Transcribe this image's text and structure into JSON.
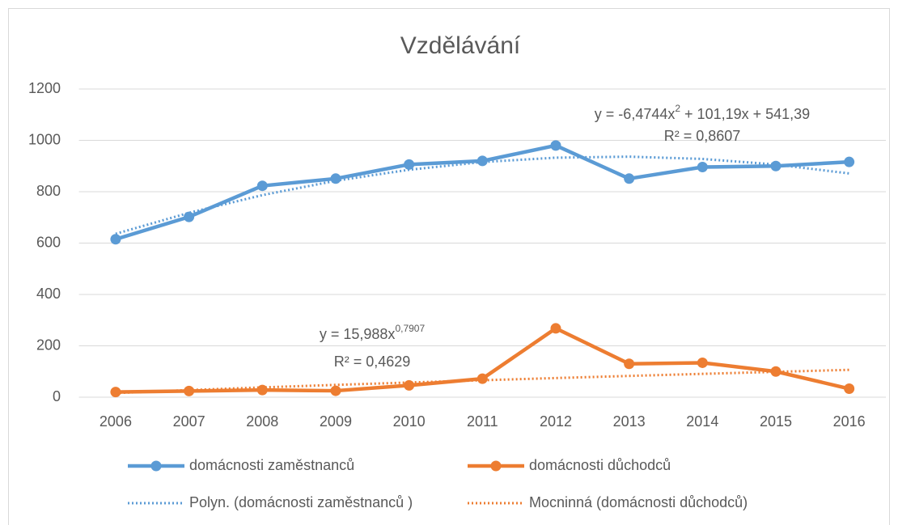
{
  "chart_data": {
    "type": "line",
    "title": "Vzdělávání",
    "categories": [
      "2006",
      "2007",
      "2008",
      "2009",
      "2010",
      "2011",
      "2012",
      "2013",
      "2014",
      "2015",
      "2016"
    ],
    "series": [
      {
        "name": "domácnosti zaměstnanců",
        "color": "#5b9bd5",
        "values": [
          615,
          702,
          823,
          851,
          906,
          920,
          980,
          851,
          896,
          900,
          916
        ]
      },
      {
        "name": "domácnosti důchodců",
        "color": "#ed7d31",
        "values": [
          20,
          24,
          28,
          25,
          46,
          72,
          268,
          130,
          134,
          100,
          33
        ]
      }
    ],
    "trendlines": [
      {
        "name": "Polyn. (domácnosti zaměstnanců )",
        "color": "#5b9bd5",
        "values": [
          636.1,
          717.9,
          786.7,
          842.6,
          885.5,
          915.5,
          932.5,
          936.5,
          927.7,
          905.9,
          871.1
        ],
        "equation": [
          "y = -6,4744x",
          "2",
          " + 101,19x + 541,39"
        ],
        "r2": "R² = 0,8607"
      },
      {
        "name": "Mocninná (domácnosti důchodců)",
        "color": "#ed7d31",
        "values": [
          16.0,
          27.7,
          38.1,
          47.9,
          57.1,
          65.9,
          74.5,
          82.8,
          90.8,
          98.7,
          106.5
        ],
        "equation": [
          "y = 15,988x",
          "0,7907"
        ],
        "r2": "R² = 0,4629"
      }
    ],
    "ylim": [
      0,
      1200
    ],
    "yticks": [
      0,
      200,
      400,
      600,
      800,
      1000,
      1200
    ],
    "grid": true,
    "legend": "bottom"
  }
}
